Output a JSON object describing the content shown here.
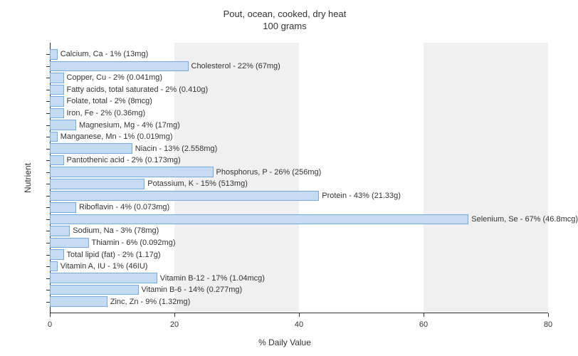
{
  "chart": {
    "type": "bar-horizontal",
    "title_line1": "Pout, ocean, cooked, dry heat",
    "title_line2": "100 grams",
    "title_fontsize": 13,
    "ylabel": "Nutrient",
    "xlabel": "% Daily Value",
    "label_fontsize": 12,
    "bar_label_fontsize": 11,
    "xlim": [
      0,
      80
    ],
    "xtick_step": 20,
    "xticks": [
      0,
      20,
      40,
      60,
      80
    ],
    "background_color": "#ffffff",
    "band_color_light": "#ffffff",
    "band_color_dark": "#f0f0f0",
    "bar_fill_color": "#c5dbf2",
    "bar_border_color": "#7aa9e0",
    "axis_color": "#333333",
    "nutrients": [
      {
        "label": "Calcium, Ca - 1% (13mg)",
        "value": 1
      },
      {
        "label": "Cholesterol - 22% (67mg)",
        "value": 22
      },
      {
        "label": "Copper, Cu - 2% (0.041mg)",
        "value": 2
      },
      {
        "label": "Fatty acids, total saturated - 2% (0.410g)",
        "value": 2
      },
      {
        "label": "Folate, total - 2% (8mcg)",
        "value": 2
      },
      {
        "label": "Iron, Fe - 2% (0.36mg)",
        "value": 2
      },
      {
        "label": "Magnesium, Mg - 4% (17mg)",
        "value": 4
      },
      {
        "label": "Manganese, Mn - 1% (0.019mg)",
        "value": 1
      },
      {
        "label": "Niacin - 13% (2.558mg)",
        "value": 13
      },
      {
        "label": "Pantothenic acid - 2% (0.173mg)",
        "value": 2
      },
      {
        "label": "Phosphorus, P - 26% (256mg)",
        "value": 26
      },
      {
        "label": "Potassium, K - 15% (513mg)",
        "value": 15
      },
      {
        "label": "Protein - 43% (21.33g)",
        "value": 43
      },
      {
        "label": "Riboflavin - 4% (0.073mg)",
        "value": 4
      },
      {
        "label": "Selenium, Se - 67% (46.8mcg)",
        "value": 67
      },
      {
        "label": "Sodium, Na - 3% (78mg)",
        "value": 3
      },
      {
        "label": "Thiamin - 6% (0.092mg)",
        "value": 6
      },
      {
        "label": "Total lipid (fat) - 2% (1.17g)",
        "value": 2
      },
      {
        "label": "Vitamin A, IU - 1% (46IU)",
        "value": 1
      },
      {
        "label": "Vitamin B-12 - 17% (1.04mcg)",
        "value": 17
      },
      {
        "label": "Vitamin B-6 - 14% (0.277mg)",
        "value": 14
      },
      {
        "label": "Zinc, Zn - 9% (1.32mg)",
        "value": 9
      }
    ]
  }
}
